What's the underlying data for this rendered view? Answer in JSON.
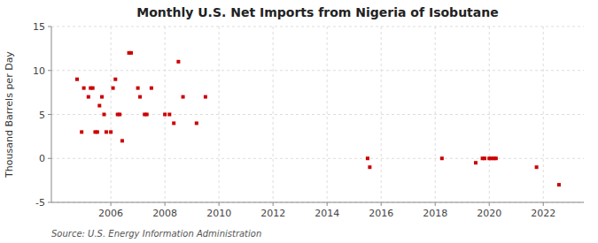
{
  "chart_data": {
    "type": "scatter",
    "title": "Monthly U.S. Net Imports from Nigeria of Isobutane",
    "ylabel": "Thousand Barrels per Day",
    "source": "Source: U.S. Energy Information Administration",
    "color": "#cc0000",
    "marker": "square",
    "grid": true,
    "xlim": [
      2003.8,
      2023.5
    ],
    "ylim": [
      -5,
      15
    ],
    "xticks": [
      2006,
      2008,
      2010,
      2012,
      2014,
      2016,
      2018,
      2020,
      2022
    ],
    "yticks": [
      -5,
      0,
      5,
      10,
      15
    ],
    "x": [
      2004.75,
      2004.92,
      2005.0,
      2005.17,
      2005.25,
      2005.33,
      2005.42,
      2005.5,
      2005.58,
      2005.67,
      2005.75,
      2005.83,
      2006.0,
      2006.08,
      2006.17,
      2006.25,
      2006.33,
      2006.42,
      2006.67,
      2006.75,
      2007.0,
      2007.08,
      2007.25,
      2007.33,
      2007.5,
      2008.0,
      2008.17,
      2008.33,
      2008.5,
      2008.67,
      2009.17,
      2009.5,
      2015.5,
      2015.58,
      2018.25,
      2019.5,
      2019.75,
      2019.83,
      2020.0,
      2020.08,
      2020.17,
      2020.25,
      2021.75,
      2022.58
    ],
    "values": [
      9,
      3,
      8,
      7,
      8,
      8,
      3,
      3,
      6,
      7,
      5,
      3,
      3,
      8,
      9,
      5,
      5,
      2,
      12,
      12,
      8,
      7,
      5,
      5,
      8,
      5,
      5,
      4,
      11,
      7,
      4,
      7,
      0,
      -1,
      0,
      -0.5,
      0,
      0,
      0,
      0,
      0,
      0,
      -1,
      -3
    ]
  }
}
